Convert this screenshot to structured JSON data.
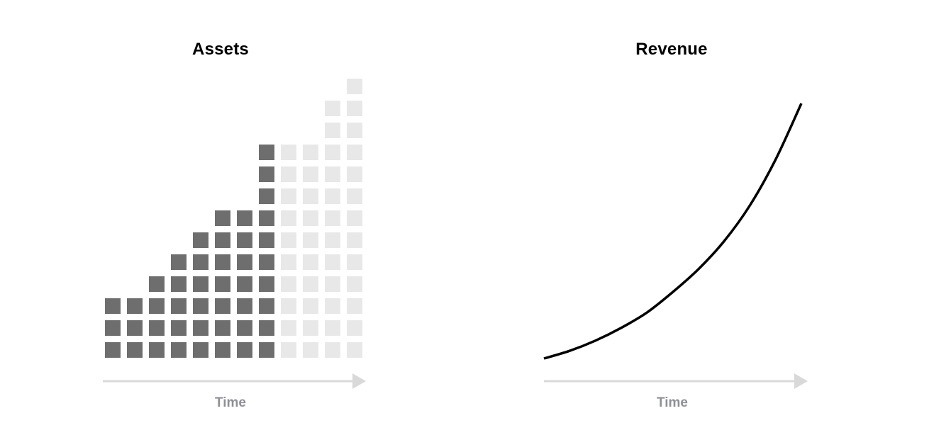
{
  "colors": {
    "owned_block": "#6e6e6e",
    "projected_block": "#e8e8e8",
    "axis": "#d9d9d9",
    "axis_label": "#8e9096",
    "curve": "#000000",
    "title": "#000000"
  },
  "chart_data": [
    {
      "type": "bar",
      "title": "Assets",
      "xlabel": "Time",
      "ylabel": "",
      "grid": false,
      "categories": [
        "",
        "",
        "",
        "",
        "",
        "",
        "",
        "",
        "",
        "",
        "",
        ""
      ],
      "series": [
        {
          "values": [
            3,
            3,
            4,
            5,
            6,
            7,
            7,
            10,
            0,
            0,
            0,
            0
          ]
        },
        {
          "values": [
            0,
            0,
            0,
            0,
            0,
            0,
            0,
            0,
            10,
            10,
            12,
            13
          ]
        }
      ],
      "ylim": [
        0,
        13
      ]
    },
    {
      "type": "line",
      "title": "Revenue",
      "xlabel": "Time",
      "ylabel": "",
      "grid": false,
      "series": [
        {
          "x": [
            0,
            0.1,
            0.2,
            0.3,
            0.4,
            0.5,
            0.6,
            0.7,
            0.8,
            0.9,
            1.0
          ],
          "values": [
            0,
            0.03,
            0.07,
            0.12,
            0.18,
            0.26,
            0.35,
            0.46,
            0.6,
            0.78,
            1.0
          ]
        }
      ],
      "ylim": [
        0,
        1
      ]
    }
  ]
}
